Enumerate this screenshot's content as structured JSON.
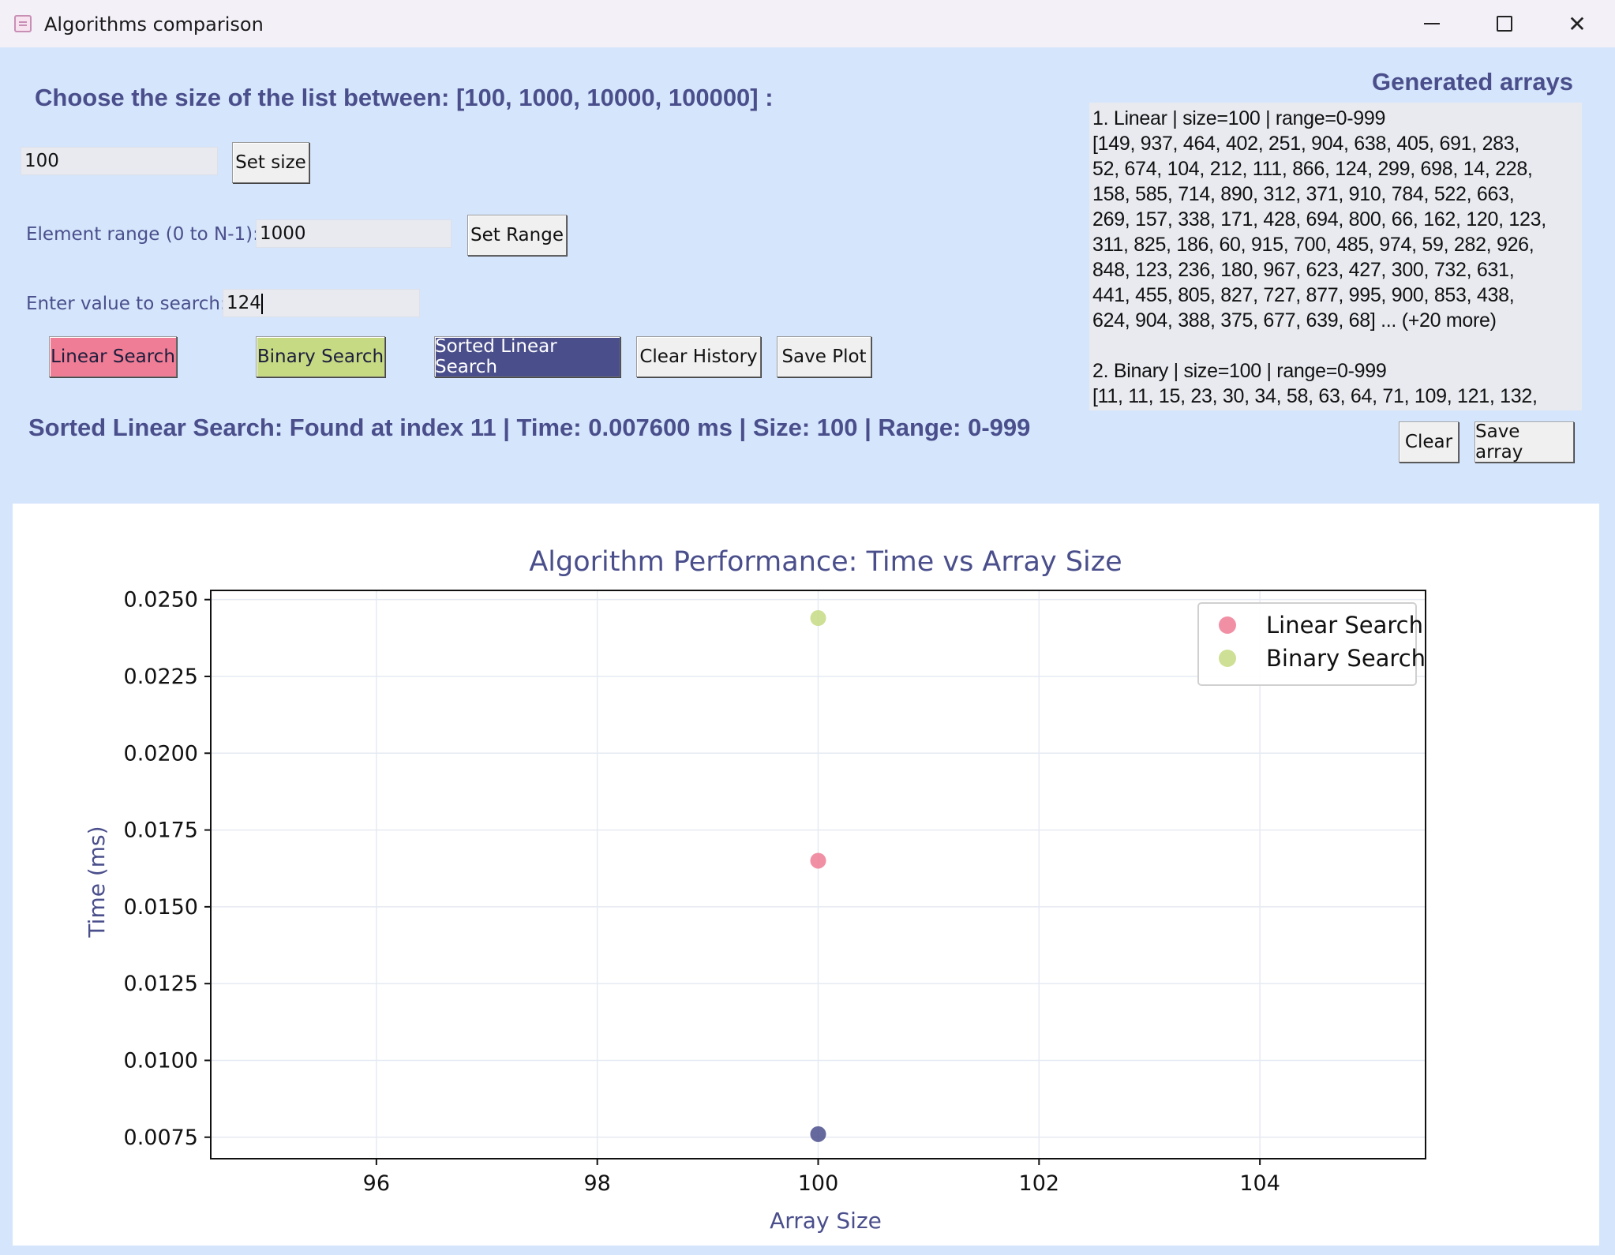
{
  "window": {
    "title": "Algorithms comparison",
    "minimize_icon": "minimize-icon",
    "maximize_icon": "maximize-icon",
    "close_icon": "close-icon"
  },
  "controls": {
    "heading": "Choose the size of the list between: [100, 1000, 10000, 100000] :",
    "size_value": "100",
    "set_size_label": "Set size",
    "range_label": "Element range (0 to N-1):",
    "range_value": "1000",
    "set_range_label": "Set Range",
    "search_label": "Enter value to search:",
    "search_value": "124",
    "buttons": {
      "linear": "Linear Search",
      "binary": "Binary Search",
      "sorted_linear": "Sorted Linear Search",
      "clear_history": "Clear History",
      "save_plot": "Save Plot"
    },
    "status": "Sorted Linear Search: Found at index 11 | Time: 0.007600 ms | Size: 100 | Range: 0-999"
  },
  "arrays_panel": {
    "title": "Generated arrays",
    "lines": [
      "1. Linear | size=100 | range=0-999",
      "[149, 937, 464, 402, 251, 904, 638, 405, 691, 283,",
      "52, 674, 104, 212, 111, 866, 124, 299, 698, 14, 228,",
      "158, 585, 714, 890, 312, 371, 910, 784, 522, 663,",
      "269, 157, 338, 171, 428, 694, 800, 66, 162, 120, 123,",
      "311, 825, 186, 60, 915, 700, 485, 974, 59, 282, 926,",
      "848, 123, 236, 180, 967, 623, 427, 300, 732, 631,",
      "441, 455, 805, 827, 727, 877, 995, 900, 853, 438,",
      "624, 904, 388, 375, 677, 639, 68] ... (+20 more)",
      "",
      "2. Binary | size=100 | range=0-999",
      "[11, 11, 15, 23, 30, 34, 58, 63, 64, 71, 109, 121, 132,"
    ],
    "clear_label": "Clear",
    "save_label": "Save array"
  },
  "colors": {
    "linear": "#ef7d95",
    "binary": "#c6da83",
    "sorted_linear": "#4a4f8c",
    "background": "#d5e5fb"
  },
  "chart_data": {
    "type": "scatter",
    "title": "Algorithm Performance: Time vs Array Size",
    "xlabel": "Array Size",
    "ylabel": "Time (ms)",
    "xlim": [
      94.5,
      105.5
    ],
    "ylim": [
      0.0068,
      0.0253
    ],
    "xticks": [
      96,
      98,
      100,
      102,
      104
    ],
    "yticks": [
      0.0075,
      0.01,
      0.0125,
      0.015,
      0.0175,
      0.02,
      0.0225,
      0.025
    ],
    "ytick_labels": [
      "0.0075",
      "0.0100",
      "0.0125",
      "0.0150",
      "0.0175",
      "0.0200",
      "0.0225",
      "0.0250"
    ],
    "grid": true,
    "legend_position": "top-right",
    "series": [
      {
        "name": "Linear Search",
        "color": "#ef7d95",
        "points": [
          {
            "x": 100,
            "y": 0.0165
          }
        ],
        "in_legend": true
      },
      {
        "name": "Binary Search",
        "color": "#c6da83",
        "points": [
          {
            "x": 100,
            "y": 0.0244
          }
        ],
        "in_legend": true
      },
      {
        "name": "",
        "color": "#4a4f8c",
        "points": [
          {
            "x": 100,
            "y": 0.0076
          }
        ],
        "in_legend": false
      }
    ]
  }
}
